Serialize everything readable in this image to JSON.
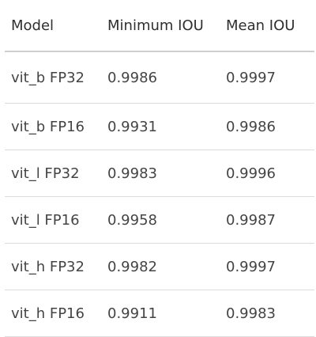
{
  "table": {
    "headers": [
      "Model",
      "Minimum IOU",
      "Mean IOU"
    ],
    "rows": [
      [
        "vit_b FP32",
        "0.9986",
        "0.9997"
      ],
      [
        "vit_b FP16",
        "0.9931",
        "0.9986"
      ],
      [
        "vit_l FP32",
        "0.9983",
        "0.9996"
      ],
      [
        "vit_l FP16",
        "0.9958",
        "0.9987"
      ],
      [
        "vit_h FP32",
        "0.9982",
        "0.9997"
      ],
      [
        "vit_h FP16",
        "0.9911",
        "0.9983"
      ]
    ]
  }
}
